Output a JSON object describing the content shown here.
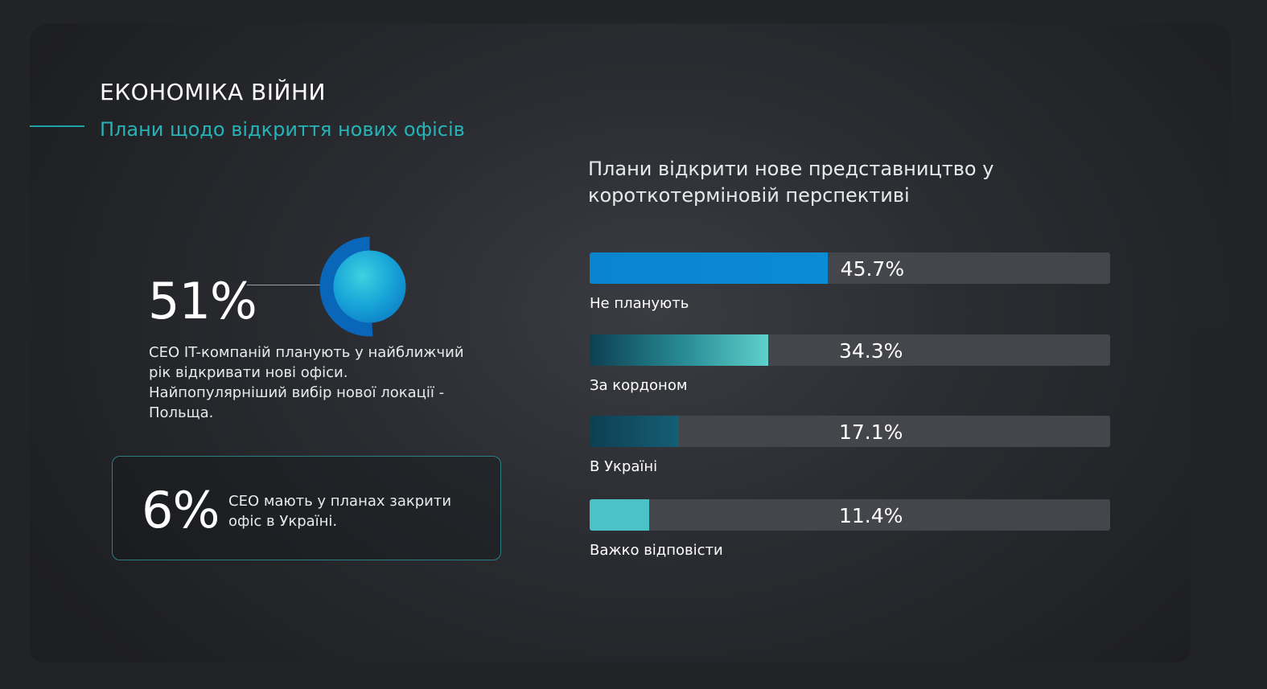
{
  "header": {
    "title": "ЕКОНОМІКА ВІЙНИ",
    "subtitle": "Плани щодо відкриття нових офісів"
  },
  "highlight": {
    "value": "51%",
    "fraction": 0.51,
    "description": "CEO IT-компаній планують у найближчий рік відкривати нові офіси. Найпопулярніший вибір нової локації - Польща."
  },
  "callout": {
    "value": "6%",
    "text": "CEO мають у планах закрити офіс в Україні."
  },
  "colors": {
    "accent": "#26b3b7",
    "track": "#44464b",
    "fills": [
      "#0a86d0",
      "#4fc2c2",
      "#13586e",
      "#4bc3c6"
    ]
  },
  "chart_data": {
    "type": "bar",
    "orientation": "horizontal",
    "title": "Плани відкрити нове представництво у короткотерміновій перспективі",
    "categories": [
      "Не планують",
      "За кордоном",
      "В Україні",
      "Важко відповісти"
    ],
    "values": [
      45.7,
      34.3,
      17.1,
      11.4
    ],
    "value_labels": [
      "45.7%",
      "34.3%",
      "17.1%",
      "11.4%"
    ],
    "unit": "%",
    "xlim": [
      0,
      100
    ],
    "grid": false,
    "legend": "none"
  }
}
